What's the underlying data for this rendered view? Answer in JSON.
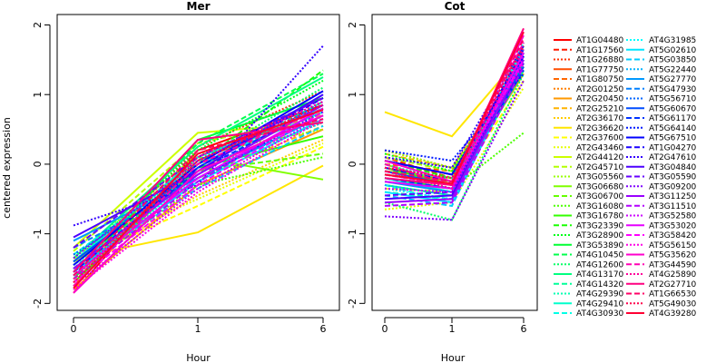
{
  "chart_data": {
    "type": "line",
    "ylabel": "centered expression",
    "xlabel": "Hour",
    "x": [
      "0",
      "1",
      "6"
    ],
    "ylim": [
      -2.1,
      2.15
    ],
    "yticks": [
      -2,
      -1,
      0,
      1,
      2
    ],
    "grid": false,
    "legend_position": "right",
    "panels": [
      {
        "title": "Mer"
      },
      {
        "title": "Cot"
      }
    ],
    "series": [
      {
        "name": "AT1G04480",
        "color": "#ff0000",
        "dash": "solid",
        "mer": [
          -1.85,
          0.2,
          0.85
        ],
        "cot": [
          0.05,
          -0.15,
          1.55
        ]
      },
      {
        "name": "AT1G17560",
        "color": "#ff1a00",
        "dash": "dashed",
        "mer": [
          -1.7,
          0.1,
          0.95
        ],
        "cot": [
          0.1,
          -0.2,
          1.6
        ]
      },
      {
        "name": "AT1G26880",
        "color": "#ff3300",
        "dash": "dotted",
        "mer": [
          -1.55,
          0.25,
          1.05
        ],
        "cot": [
          0.2,
          -0.05,
          1.45
        ]
      },
      {
        "name": "AT1G77750",
        "color": "#ff4d00",
        "dash": "solid",
        "mer": [
          -1.75,
          0.05,
          0.8
        ],
        "cot": [
          -0.05,
          -0.25,
          1.4
        ]
      },
      {
        "name": "AT1G80750",
        "color": "#ff6600",
        "dash": "dashed",
        "mer": [
          -1.6,
          0.0,
          0.75
        ],
        "cot": [
          0.0,
          -0.1,
          1.5
        ]
      },
      {
        "name": "AT2G01250",
        "color": "#ff8000",
        "dash": "dotted",
        "mer": [
          -1.45,
          -0.1,
          0.6
        ],
        "cot": [
          -0.15,
          -0.3,
          1.35
        ]
      },
      {
        "name": "AT2G20450",
        "color": "#ff9900",
        "dash": "solid",
        "mer": [
          -1.8,
          -0.3,
          0.5
        ],
        "cot": [
          -0.2,
          -0.35,
          1.3
        ]
      },
      {
        "name": "AT2G25210",
        "color": "#ffb300",
        "dash": "dashed",
        "mer": [
          -1.65,
          -0.2,
          0.55
        ],
        "cot": [
          0.15,
          -0.05,
          1.45
        ]
      },
      {
        "name": "AT2G36170",
        "color": "#ffcc00",
        "dash": "dotted",
        "mer": [
          -1.5,
          -0.45,
          0.35
        ],
        "cot": [
          0.05,
          -0.15,
          1.4
        ]
      },
      {
        "name": "AT2G36620",
        "color": "#ffe600",
        "dash": "solid",
        "mer": [
          -1.35,
          -0.98,
          -0.02
        ],
        "cot": [
          0.75,
          0.4,
          1.6
        ]
      },
      {
        "name": "AT2G37600",
        "color": "#ffff00",
        "dash": "dashed",
        "mer": [
          -1.4,
          -0.6,
          0.25
        ],
        "cot": [
          -0.35,
          -0.4,
          1.2
        ]
      },
      {
        "name": "AT2G43460",
        "color": "#e6ff00",
        "dash": "dotted",
        "mer": [
          -1.3,
          -0.5,
          0.3
        ],
        "cot": [
          -0.65,
          -0.55,
          1.1
        ]
      },
      {
        "name": "AT2G44120",
        "color": "#ccff00",
        "dash": "solid",
        "mer": [
          -1.2,
          0.45,
          0.6
        ],
        "cot": [
          -0.1,
          -0.2,
          1.5
        ]
      },
      {
        "name": "AT2G45710",
        "color": "#b3ff00",
        "dash": "dashed",
        "mer": [
          -1.25,
          0.3,
          0.7
        ],
        "cot": [
          0.1,
          -0.1,
          1.4
        ]
      },
      {
        "name": "AT3G05560",
        "color": "#99ff00",
        "dash": "dotted",
        "mer": [
          -1.35,
          0.15,
          0.5
        ],
        "cot": [
          0.2,
          -0.05,
          1.3
        ]
      },
      {
        "name": "AT3G06680",
        "color": "#80ff00",
        "dash": "solid",
        "mer": [
          -1.45,
          0.1,
          -0.22
        ],
        "cot": [
          0.0,
          -0.3,
          1.45
        ]
      },
      {
        "name": "AT3G06700",
        "color": "#66ff00",
        "dash": "dashed",
        "mer": [
          -1.55,
          -0.1,
          0.15
        ],
        "cot": [
          -0.15,
          -0.25,
          1.35
        ]
      },
      {
        "name": "AT3G16080",
        "color": "#4dff00",
        "dash": "dotted",
        "mer": [
          -1.6,
          -0.3,
          0.1
        ],
        "cot": [
          -0.25,
          -0.35,
          0.45
        ]
      },
      {
        "name": "AT3G16780",
        "color": "#33ff00",
        "dash": "solid",
        "mer": [
          -1.7,
          -0.05,
          0.4
        ],
        "cot": [
          -0.05,
          -0.3,
          1.6
        ]
      },
      {
        "name": "AT3G23390",
        "color": "#1aff00",
        "dash": "dashed",
        "mer": [
          -1.5,
          0.0,
          1.35
        ],
        "cot": [
          0.05,
          -0.2,
          1.55
        ]
      },
      {
        "name": "AT3G28900",
        "color": "#00ff1a",
        "dash": "dotted",
        "mer": [
          -1.4,
          0.2,
          1.2
        ],
        "cot": [
          0.15,
          -0.1,
          1.5
        ]
      },
      {
        "name": "AT3G53890",
        "color": "#00ff33",
        "dash": "solid",
        "mer": [
          -1.65,
          0.35,
          0.95
        ],
        "cot": [
          -0.2,
          -0.35,
          1.4
        ]
      },
      {
        "name": "AT4G10450",
        "color": "#00ff4d",
        "dash": "dashed",
        "mer": [
          -1.55,
          0.3,
          1.3
        ],
        "cot": [
          -0.1,
          -0.2,
          1.45
        ]
      },
      {
        "name": "AT4G12600",
        "color": "#00ff66",
        "dash": "dotted",
        "mer": [
          -1.45,
          0.05,
          1.1
        ],
        "cot": [
          -0.55,
          -0.8,
          1.3
        ]
      },
      {
        "name": "AT4G13170",
        "color": "#00ff80",
        "dash": "solid",
        "mer": [
          -1.35,
          0.25,
          1.25
        ],
        "cot": [
          -0.3,
          -0.45,
          1.35
        ]
      },
      {
        "name": "AT4G14320",
        "color": "#00ff99",
        "dash": "dashed",
        "mer": [
          -1.5,
          -0.05,
          0.9
        ],
        "cot": [
          -0.4,
          -0.5,
          1.55
        ]
      },
      {
        "name": "AT4G29390",
        "color": "#00ffb3",
        "dash": "dotted",
        "mer": [
          -1.6,
          -0.15,
          0.85
        ],
        "cot": [
          0.0,
          -0.25,
          1.85
        ]
      },
      {
        "name": "AT4G29410",
        "color": "#00ffcc",
        "dash": "solid",
        "mer": [
          -1.4,
          0.1,
          0.8
        ],
        "cot": [
          -0.2,
          -0.4,
          1.7
        ]
      },
      {
        "name": "AT4G30930",
        "color": "#00ffe6",
        "dash": "dashed",
        "mer": [
          -1.3,
          0.0,
          0.75
        ],
        "cot": [
          -0.3,
          -0.55,
          1.65
        ]
      },
      {
        "name": "AT4G31985",
        "color": "#00ffff",
        "dash": "dotted",
        "mer": [
          -1.45,
          -0.2,
          0.7
        ],
        "cot": [
          -0.35,
          -0.5,
          1.75
        ]
      },
      {
        "name": "AT5G02610",
        "color": "#00e6ff",
        "dash": "solid",
        "mer": [
          -1.55,
          -0.25,
          0.65
        ],
        "cot": [
          -0.4,
          -0.55,
          1.6
        ]
      },
      {
        "name": "AT5G03850",
        "color": "#00ccff",
        "dash": "dashed",
        "mer": [
          -1.5,
          -0.35,
          0.55
        ],
        "cot": [
          -0.45,
          -0.6,
          1.5
        ]
      },
      {
        "name": "AT5G22440",
        "color": "#00b3ff",
        "dash": "dotted",
        "mer": [
          -1.6,
          -0.1,
          0.6
        ],
        "cot": [
          -0.3,
          -0.45,
          1.45
        ]
      },
      {
        "name": "AT5G27770",
        "color": "#0099ff",
        "dash": "solid",
        "mer": [
          -1.1,
          -0.2,
          0.7
        ],
        "cot": [
          -0.25,
          -0.4,
          1.55
        ]
      },
      {
        "name": "AT5G47930",
        "color": "#0080ff",
        "dash": "dashed",
        "mer": [
          -1.2,
          -0.25,
          0.8
        ],
        "cot": [
          -0.15,
          -0.3,
          1.5
        ]
      },
      {
        "name": "AT5G56710",
        "color": "#0066ff",
        "dash": "dotted",
        "mer": [
          -1.3,
          -0.15,
          0.9
        ],
        "cot": [
          -0.05,
          -0.2,
          1.45
        ]
      },
      {
        "name": "AT5G60670",
        "color": "#004dff",
        "dash": "solid",
        "mer": [
          -1.4,
          -0.05,
          1.0
        ],
        "cot": [
          -0.1,
          -0.3,
          1.4
        ]
      },
      {
        "name": "AT5G61170",
        "color": "#0033ff",
        "dash": "dashed",
        "mer": [
          -1.5,
          -0.1,
          0.85
        ],
        "cot": [
          -0.2,
          -0.35,
          1.35
        ]
      },
      {
        "name": "AT5G64140",
        "color": "#001aff",
        "dash": "dotted",
        "mer": [
          -1.6,
          -0.2,
          0.75
        ],
        "cot": [
          0.2,
          0.05,
          1.3
        ]
      },
      {
        "name": "AT5G67510",
        "color": "#0000ff",
        "dash": "solid",
        "mer": [
          -1.45,
          0.0,
          1.05
        ],
        "cot": [
          0.05,
          -0.15,
          1.55
        ]
      },
      {
        "name": "AT1G04270",
        "color": "#1a00ff",
        "dash": "dashed",
        "mer": [
          -1.55,
          -0.05,
          0.95
        ],
        "cot": [
          -0.05,
          -0.25,
          1.65
        ]
      },
      {
        "name": "AT2G47610",
        "color": "#3300ff",
        "dash": "dotted",
        "mer": [
          -0.88,
          -0.3,
          1.7
        ],
        "cot": [
          0.1,
          -0.05,
          1.7
        ]
      },
      {
        "name": "AT3G04840",
        "color": "#4d00ff",
        "dash": "solid",
        "mer": [
          -1.05,
          -0.1,
          1.0
        ],
        "cot": [
          -0.5,
          -0.45,
          1.6
        ]
      },
      {
        "name": "AT3G05590",
        "color": "#6600ff",
        "dash": "dashed",
        "mer": [
          -1.2,
          0.1,
          0.95
        ],
        "cot": [
          -0.45,
          -0.4,
          1.45
        ]
      },
      {
        "name": "AT3G09200",
        "color": "#8000ff",
        "dash": "dotted",
        "mer": [
          -1.35,
          0.05,
          0.9
        ],
        "cot": [
          -0.75,
          -0.8,
          1.2
        ]
      },
      {
        "name": "AT3G11250",
        "color": "#9900ff",
        "dash": "solid",
        "mer": [
          -1.5,
          -0.15,
          0.85
        ],
        "cot": [
          -0.55,
          -0.5,
          1.5
        ]
      },
      {
        "name": "AT3G11510",
        "color": "#b300ff",
        "dash": "dashed",
        "mer": [
          -1.65,
          -0.25,
          0.8
        ],
        "cot": [
          -0.6,
          -0.55,
          1.4
        ]
      },
      {
        "name": "AT3G52580",
        "color": "#cc00ff",
        "dash": "dotted",
        "mer": [
          -1.75,
          -0.35,
          0.7
        ],
        "cot": [
          -0.35,
          -0.4,
          1.55
        ]
      },
      {
        "name": "AT3G53020",
        "color": "#e600ff",
        "dash": "solid",
        "mer": [
          -1.6,
          -0.2,
          0.8
        ],
        "cot": [
          -0.25,
          -0.35,
          1.6
        ]
      },
      {
        "name": "AT3G58420",
        "color": "#ff00ff",
        "dash": "dashed",
        "mer": [
          -1.7,
          -0.3,
          0.75
        ],
        "cot": [
          -0.15,
          -0.3,
          1.5
        ]
      },
      {
        "name": "AT5G56150",
        "color": "#ff00e6",
        "dash": "dotted",
        "mer": [
          -1.8,
          -0.4,
          0.65
        ],
        "cot": [
          -0.05,
          -0.2,
          1.45
        ]
      },
      {
        "name": "AT5G35620",
        "color": "#ff00cc",
        "dash": "solid",
        "mer": [
          -1.85,
          -0.1,
          0.7
        ],
        "cot": [
          0.05,
          -0.25,
          1.85
        ]
      },
      {
        "name": "AT3G44590",
        "color": "#ff00b3",
        "dash": "dashed",
        "mer": [
          -1.75,
          0.0,
          0.8
        ],
        "cot": [
          0.0,
          -0.3,
          1.75
        ]
      },
      {
        "name": "AT4G25890",
        "color": "#ff0099",
        "dash": "dotted",
        "mer": [
          -1.65,
          0.1,
          0.9
        ],
        "cot": [
          -0.1,
          -0.35,
          1.65
        ]
      },
      {
        "name": "AT2G27710",
        "color": "#ff0080",
        "dash": "solid",
        "mer": [
          -1.55,
          0.35,
          0.6
        ],
        "cot": [
          -0.2,
          -0.3,
          1.95
        ]
      },
      {
        "name": "AT1G66530",
        "color": "#ff0066",
        "dash": "dashed",
        "mer": [
          -1.6,
          0.2,
          0.65
        ],
        "cot": [
          -0.1,
          -0.25,
          1.8
        ]
      },
      {
        "name": "AT5G49030",
        "color": "#ff004d",
        "dash": "dotted",
        "mer": [
          -1.7,
          0.05,
          0.85
        ],
        "cot": [
          -0.05,
          -0.2,
          1.7
        ]
      },
      {
        "name": "AT4G39280",
        "color": "#ff0033",
        "dash": "solid",
        "mer": [
          -1.78,
          0.15,
          0.78
        ],
        "cot": [
          -0.15,
          -0.28,
          1.9
        ]
      }
    ]
  }
}
